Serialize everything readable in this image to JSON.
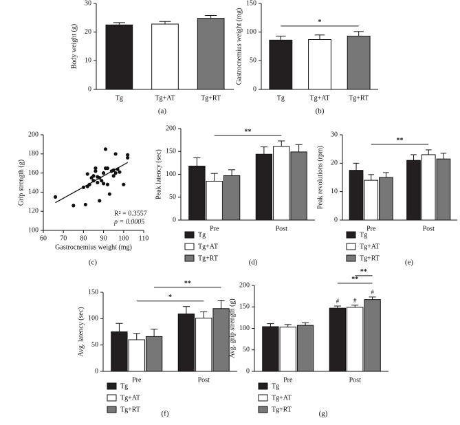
{
  "chart_data": [
    {
      "type": "bar",
      "panel": "(a)",
      "ylabel": "Body weight (g)",
      "categories": [
        "Tg",
        "Tg+AT",
        "Tg+RT"
      ],
      "values": [
        22.5,
        22.8,
        24.8
      ],
      "errors": [
        0.8,
        0.9,
        1.0
      ],
      "colors": [
        "#231f20",
        "#ffffff",
        "#777777"
      ],
      "ylim": [
        0,
        30
      ],
      "yticks": [
        0,
        10,
        20,
        30
      ]
    },
    {
      "type": "bar",
      "panel": "(b)",
      "ylabel": "Gastrocnemius weight (mg)",
      "categories": [
        "Tg",
        "Tg+AT",
        "Tg+RT"
      ],
      "values": [
        86,
        87,
        93
      ],
      "errors": [
        7,
        8,
        8
      ],
      "colors": [
        "#231f20",
        "#ffffff",
        "#777777"
      ],
      "ylim": [
        0,
        150
      ],
      "yticks": [
        0,
        50,
        100,
        150
      ],
      "brackets": [
        {
          "text": "*",
          "from": [
            "Tg"
          ],
          "to": [
            "Tg+RT"
          ]
        }
      ]
    },
    {
      "type": "scatter",
      "panel": "(c)",
      "xlabel": "Gastrocnemius weight (mg)",
      "ylabel": "Grip strength (g)",
      "x": [
        66,
        75,
        80,
        81,
        82,
        82,
        83,
        84,
        85,
        85,
        86,
        86,
        87,
        87,
        88,
        88,
        89,
        90,
        90,
        91,
        91,
        92,
        92,
        93,
        94,
        95,
        95,
        96,
        96,
        97,
        98,
        100,
        102,
        102
      ],
      "y": [
        135,
        126,
        145,
        127,
        146,
        159,
        148,
        155,
        152,
        157,
        165,
        162,
        150,
        156,
        155,
        131,
        152,
        149,
        160,
        185,
        165,
        165,
        148,
        138,
        162,
        163,
        157,
        180,
        160,
        164,
        161,
        148,
        176,
        179
      ],
      "fit": {
        "x": [
          66,
          102
        ],
        "y": [
          129,
          171
        ]
      },
      "xlim": [
        60,
        110
      ],
      "xticks": [
        60,
        70,
        80,
        90,
        100,
        110
      ],
      "ylim": [
        100,
        200
      ],
      "yticks": [
        100,
        120,
        140,
        160,
        180,
        200
      ],
      "annotations": [
        "R² = 0.3557",
        "p = 0.0005"
      ]
    },
    {
      "type": "grouped_bar",
      "panel": "(d)",
      "ylabel": "Peak latency (sec)",
      "categories": [
        "Pre",
        "Post"
      ],
      "series": [
        {
          "name": "Tg",
          "color": "#231f20",
          "values": [
            118,
            144
          ],
          "errors": [
            18,
            16
          ]
        },
        {
          "name": "Tg+AT",
          "color": "#ffffff",
          "values": [
            85,
            161
          ],
          "errors": [
            17,
            12
          ]
        },
        {
          "name": "Tg+RT",
          "color": "#777777",
          "values": [
            97,
            149
          ],
          "errors": [
            13,
            16
          ]
        }
      ],
      "ylim": [
        0,
        200
      ],
      "yticks": [
        0,
        50,
        100,
        150,
        200
      ],
      "brackets": [
        {
          "text": "**",
          "from": [
            "Pre",
            "Tg+AT"
          ],
          "to": [
            "Post",
            "Tg+AT"
          ]
        }
      ]
    },
    {
      "type": "grouped_bar",
      "panel": "(e)",
      "ylabel": "Peak revolutions (rpm)",
      "categories": [
        "Pre",
        "Post"
      ],
      "series": [
        {
          "name": "Tg",
          "color": "#231f20",
          "values": [
            17.5,
            21
          ],
          "errors": [
            2.5,
            2
          ]
        },
        {
          "name": "Tg+AT",
          "color": "#ffffff",
          "values": [
            14,
            23
          ],
          "errors": [
            2,
            1.7
          ]
        },
        {
          "name": "Tg+RT",
          "color": "#777777",
          "values": [
            15,
            21.5
          ],
          "errors": [
            1.7,
            2
          ]
        }
      ],
      "ylim": [
        0,
        30
      ],
      "yticks": [
        0,
        10,
        20,
        30
      ],
      "brackets": [
        {
          "text": "**",
          "from": [
            "Pre",
            "Tg+AT"
          ],
          "to": [
            "Post",
            "Tg+AT"
          ]
        }
      ]
    },
    {
      "type": "grouped_bar",
      "panel": "(f)",
      "ylabel": "Avg. latency (sec)",
      "categories": [
        "Pre",
        "Post"
      ],
      "series": [
        {
          "name": "Tg",
          "color": "#231f20",
          "values": [
            75,
            109
          ],
          "errors": [
            16,
            14
          ]
        },
        {
          "name": "Tg+AT",
          "color": "#ffffff",
          "values": [
            60,
            101
          ],
          "errors": [
            12,
            12
          ]
        },
        {
          "name": "Tg+RT",
          "color": "#777777",
          "values": [
            66,
            119
          ],
          "errors": [
            14,
            16
          ]
        }
      ],
      "ylim": [
        0,
        150
      ],
      "yticks": [
        0,
        50,
        100,
        150
      ],
      "brackets": [
        {
          "text": "*",
          "from": [
            "Pre",
            "Tg+AT"
          ],
          "to": [
            "Post",
            "Tg+AT"
          ]
        },
        {
          "text": "**",
          "from": [
            "Pre",
            "Tg+RT"
          ],
          "to": [
            "Post",
            "Tg+RT"
          ]
        }
      ]
    },
    {
      "type": "grouped_bar",
      "panel": "(g)",
      "ylabel": "Avg. grip strength (g)",
      "categories": [
        "Pre",
        "Post"
      ],
      "series": [
        {
          "name": "Tg",
          "color": "#231f20",
          "values": [
            104,
            147
          ],
          "errors": [
            7,
            5
          ]
        },
        {
          "name": "Tg+AT",
          "color": "#ffffff",
          "values": [
            103,
            149
          ],
          "errors": [
            6,
            5
          ]
        },
        {
          "name": "Tg+RT",
          "color": "#777777",
          "values": [
            107,
            167
          ],
          "errors": [
            6,
            6
          ]
        }
      ],
      "ylim": [
        0,
        200
      ],
      "yticks": [
        0,
        50,
        100,
        150,
        200
      ],
      "markers": [
        {
          "text": "#",
          "at": [
            "Post",
            "Tg"
          ]
        },
        {
          "text": "#",
          "at": [
            "Post",
            "Tg+AT"
          ]
        },
        {
          "text": "#",
          "at": [
            "Post",
            "Tg+RT"
          ]
        }
      ],
      "brackets": [
        {
          "text": "**",
          "from": [
            "Post",
            "Tg"
          ],
          "to": [
            "Post",
            "Tg+RT"
          ]
        },
        {
          "text": "**",
          "from": [
            "Post",
            "Tg+AT"
          ],
          "to": [
            "Post",
            "Tg+RT"
          ]
        }
      ]
    }
  ]
}
